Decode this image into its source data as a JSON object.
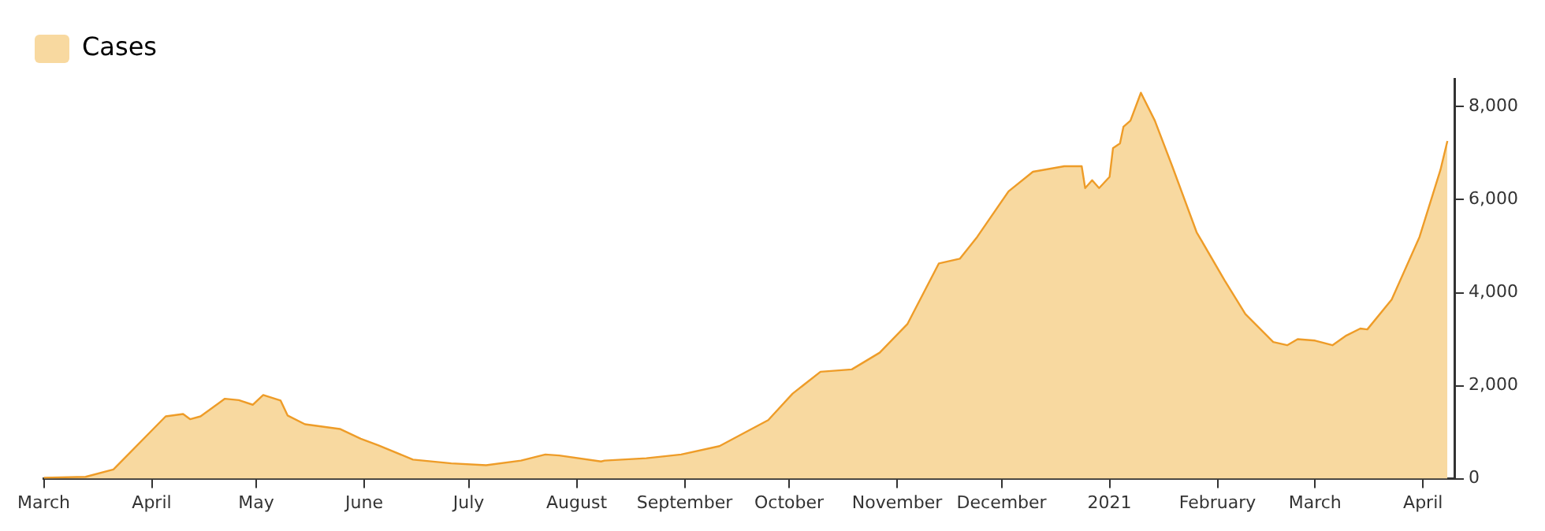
{
  "chart_data": {
    "type": "area",
    "legend": "top left",
    "grid": false,
    "x": [
      "2020-03-01",
      "2020-03-13",
      "2020-03-21",
      "2020-04-05",
      "2020-04-10",
      "2020-04-12",
      "2020-04-15",
      "2020-04-22",
      "2020-04-26",
      "2020-04-30",
      "2020-05-03",
      "2020-05-08",
      "2020-05-10",
      "2020-05-15",
      "2020-05-25",
      "2020-05-31",
      "2020-06-05",
      "2020-06-15",
      "2020-06-26",
      "2020-07-06",
      "2020-07-16",
      "2020-07-23",
      "2020-07-27",
      "2020-08-08",
      "2020-08-09",
      "2020-08-21",
      "2020-08-31",
      "2020-09-11",
      "2020-09-20",
      "2020-09-25",
      "2020-10-02",
      "2020-10-10",
      "2020-10-19",
      "2020-10-27",
      "2020-11-04",
      "2020-11-13",
      "2020-11-19",
      "2020-11-24",
      "2020-12-03",
      "2020-12-10",
      "2020-12-19",
      "2020-12-24",
      "2020-12-25",
      "2020-12-27",
      "2020-12-29",
      "2021-01-01",
      "2021-01-02",
      "2021-01-04",
      "2021-01-05",
      "2021-01-07",
      "2021-01-10",
      "2021-01-14",
      "2021-01-19",
      "2021-01-26",
      "2021-02-03",
      "2021-02-09",
      "2021-02-17",
      "2021-02-21",
      "2021-02-24",
      "2021-03-01",
      "2021-03-06",
      "2021-03-10",
      "2021-03-14",
      "2021-03-16",
      "2021-03-23",
      "2021-03-31",
      "2021-04-06",
      "2021-04-08"
    ],
    "series": [
      {
        "name": "Cases",
        "color": "#f8d9a0",
        "values": [
          20,
          40,
          200,
          1340,
          1390,
          1280,
          1340,
          1720,
          1690,
          1590,
          1800,
          1680,
          1360,
          1170,
          1070,
          860,
          720,
          410,
          330,
          290,
          390,
          520,
          500,
          370,
          390,
          440,
          520,
          700,
          1060,
          1260,
          1830,
          2300,
          2350,
          2710,
          3330,
          4630,
          4730,
          5200,
          6180,
          6600,
          6720,
          6720,
          6250,
          6420,
          6250,
          6490,
          7110,
          7210,
          7570,
          7700,
          8300,
          7700,
          6720,
          5300,
          4270,
          3540,
          2940,
          2870,
          3000,
          2970,
          2870,
          3080,
          3230,
          3210,
          3850,
          5200,
          6640,
          7260
        ]
      }
    ],
    "xlim": [
      "2020-03-01",
      "2021-04-10"
    ],
    "xticks": [
      {
        "value": "2020-03-01",
        "label": "March"
      },
      {
        "value": "2020-04-01",
        "label": "April"
      },
      {
        "value": "2020-05-01",
        "label": "May"
      },
      {
        "value": "2020-06-01",
        "label": "June"
      },
      {
        "value": "2020-07-01",
        "label": "July"
      },
      {
        "value": "2020-08-01",
        "label": "August"
      },
      {
        "value": "2020-09-01",
        "label": "September"
      },
      {
        "value": "2020-10-01",
        "label": "October"
      },
      {
        "value": "2020-11-01",
        "label": "November"
      },
      {
        "value": "2020-12-01",
        "label": "December"
      },
      {
        "value": "2021-01-01",
        "label": "2021"
      },
      {
        "value": "2021-02-01",
        "label": "February"
      },
      {
        "value": "2021-03-01",
        "label": "March"
      },
      {
        "value": "2021-04-01",
        "label": "April"
      }
    ],
    "ylim": [
      0,
      8600
    ],
    "yticks": [
      0,
      {
        "value": 2000,
        "label": "2,000"
      },
      {
        "value": 4000,
        "label": "4,000"
      },
      {
        "value": 6000,
        "label": "6,000"
      },
      {
        "value": 8000,
        "label": "8,000"
      }
    ]
  }
}
